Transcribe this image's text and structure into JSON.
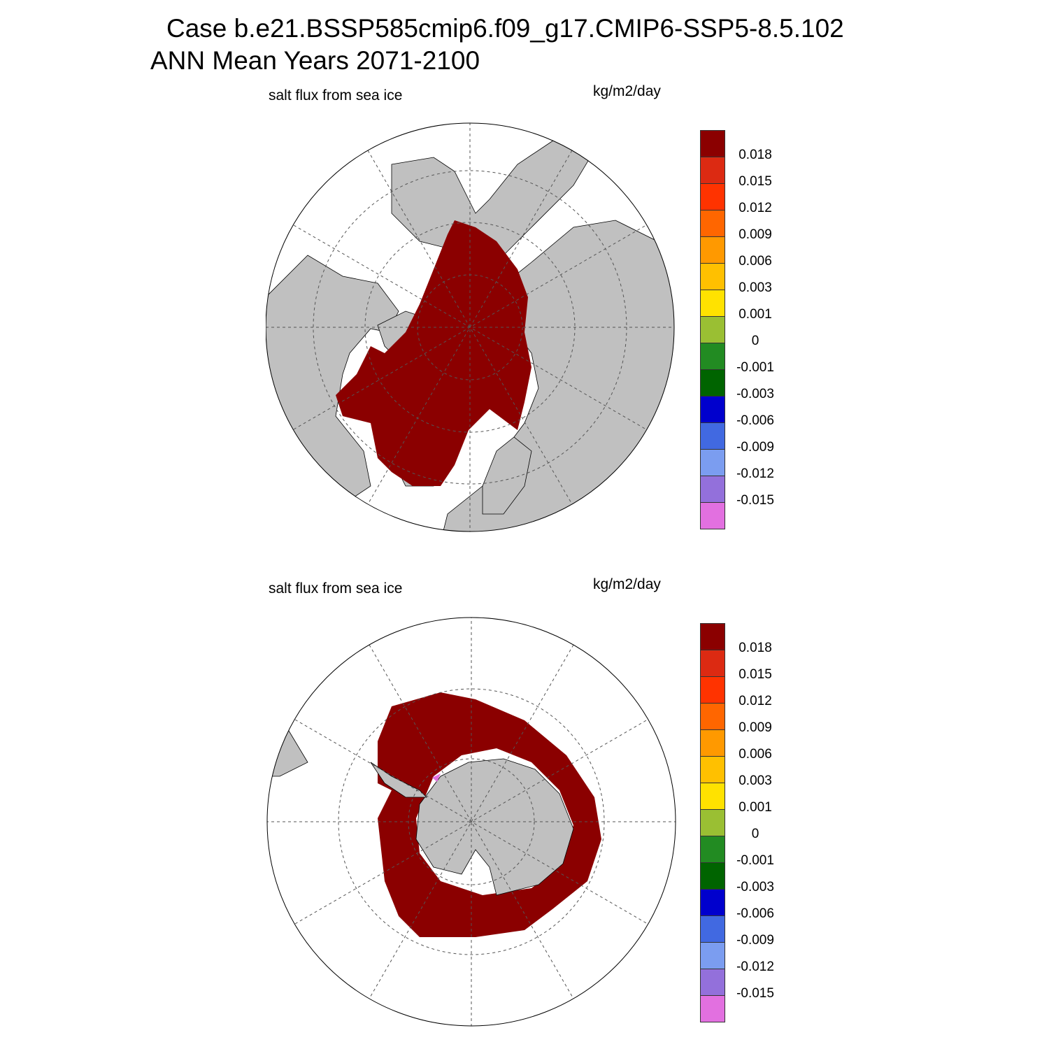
{
  "header": {
    "line1": "Case b.e21.BSSP585cmip6.f09_g17.CMIP6-SSP5-8.5.102",
    "line2": "ANN Mean    Years 2071-2100"
  },
  "panels": [
    {
      "hemisphere": "north",
      "variable": "salt flux from sea ice",
      "units": "kg/m2/day"
    },
    {
      "hemisphere": "south",
      "variable": "salt flux from sea ice",
      "units": "kg/m2/day"
    }
  ],
  "colorbar": {
    "labels": [
      "0.018",
      "0.015",
      "0.012",
      "0.009",
      "0.006",
      "0.003",
      "0.001",
      "0",
      "-0.001",
      "-0.003",
      "-0.006",
      "-0.009",
      "-0.012",
      "-0.015"
    ],
    "colors": [
      "#8b0000",
      "#dc2a12",
      "#ff3300",
      "#ff6600",
      "#ff9900",
      "#ffc000",
      "#ffe200",
      "#9abf33",
      "#228b22",
      "#006400",
      "#0000cd",
      "#4169e1",
      "#7b9df0",
      "#9370db",
      "#e270e0"
    ]
  },
  "map_colors": {
    "land": "#c0c0c0",
    "ocean": "#ffffff",
    "ice_flux": "#8b0000",
    "grid": "#555555"
  }
}
